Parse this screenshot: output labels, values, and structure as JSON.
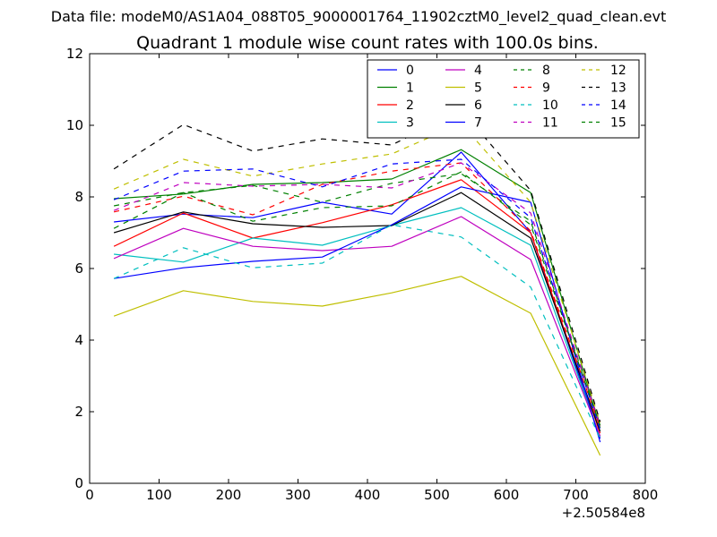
{
  "suptitle": "Data file: modeM0/AS1A04_088T05_9000001764_11902cztM0_level2_quad_clean.evt",
  "chart_data": {
    "type": "line",
    "title": "Quadrant 1 module wise count rates with 100.0s bins.",
    "xlabel": "",
    "ylabel": "",
    "x_offset_text": "+2.50584e8",
    "xlim": [
      0,
      800
    ],
    "ylim": [
      0,
      12
    ],
    "xticks": [
      0,
      100,
      200,
      300,
      400,
      500,
      600,
      700,
      800
    ],
    "yticks": [
      0,
      2,
      4,
      6,
      8,
      10,
      12
    ],
    "grid": false,
    "legend_position": "top-right",
    "legend_columns": 4,
    "x": [
      35,
      135,
      235,
      335,
      435,
      535,
      635,
      735
    ],
    "series": [
      {
        "name": "0",
        "color": "#0000ff",
        "dash": "solid",
        "values": [
          7.3,
          7.52,
          7.42,
          7.85,
          7.52,
          9.25,
          7.0,
          1.25
        ]
      },
      {
        "name": "1",
        "color": "#008000",
        "dash": "solid",
        "values": [
          7.95,
          8.08,
          8.35,
          8.4,
          8.5,
          9.32,
          8.12,
          1.55
        ]
      },
      {
        "name": "2",
        "color": "#ff0000",
        "dash": "solid",
        "values": [
          6.62,
          7.55,
          6.85,
          7.28,
          7.78,
          8.48,
          7.0,
          1.4
        ]
      },
      {
        "name": "3",
        "color": "#00bfbf",
        "dash": "solid",
        "values": [
          6.4,
          6.18,
          6.85,
          6.65,
          7.2,
          7.7,
          6.65,
          1.3
        ]
      },
      {
        "name": "4",
        "color": "#bf00bf",
        "dash": "solid",
        "values": [
          6.28,
          7.12,
          6.62,
          6.5,
          6.62,
          7.45,
          6.25,
          1.32
        ]
      },
      {
        "name": "5",
        "color": "#bfbf00",
        "dash": "solid",
        "values": [
          4.67,
          5.38,
          5.08,
          4.95,
          5.32,
          5.78,
          4.75,
          0.78
        ]
      },
      {
        "name": "6",
        "color": "#000000",
        "dash": "solid",
        "values": [
          7.0,
          7.58,
          7.25,
          7.15,
          7.2,
          8.12,
          6.85,
          1.45
        ]
      },
      {
        "name": "7",
        "color": "#0000ff",
        "dash": "solid",
        "values": [
          5.72,
          6.02,
          6.2,
          6.32,
          7.22,
          8.28,
          7.85,
          1.15
        ]
      },
      {
        "name": "8",
        "color": "#008000",
        "dash": "dashed",
        "values": [
          7.75,
          8.12,
          8.32,
          7.85,
          8.38,
          8.65,
          7.32,
          1.65
        ]
      },
      {
        "name": "9",
        "color": "#ff0000",
        "dash": "dashed",
        "values": [
          7.58,
          8.02,
          7.5,
          8.35,
          8.72,
          8.95,
          7.05,
          1.55
        ]
      },
      {
        "name": "10",
        "color": "#00bfbf",
        "dash": "dashed",
        "values": [
          5.72,
          6.58,
          6.02,
          6.15,
          7.22,
          6.88,
          5.48,
          1.25
        ]
      },
      {
        "name": "11",
        "color": "#bf00bf",
        "dash": "dashed",
        "values": [
          7.62,
          8.4,
          8.3,
          8.35,
          8.25,
          8.95,
          7.55,
          1.6
        ]
      },
      {
        "name": "12",
        "color": "#bfbf00",
        "dash": "dashed",
        "values": [
          8.22,
          9.05,
          8.58,
          8.92,
          9.2,
          10.05,
          7.85,
          1.7
        ]
      },
      {
        "name": "13",
        "color": "#000000",
        "dash": "dashed",
        "values": [
          8.78,
          10.02,
          9.28,
          9.62,
          9.45,
          10.42,
          8.18,
          1.72
        ]
      },
      {
        "name": "14",
        "color": "#0000ff",
        "dash": "dashed",
        "values": [
          7.92,
          8.72,
          8.78,
          8.28,
          8.92,
          9.05,
          7.42,
          1.5
        ]
      },
      {
        "name": "15",
        "color": "#008000",
        "dash": "dashed",
        "values": [
          7.12,
          8.12,
          7.32,
          7.7,
          7.75,
          8.7,
          7.22,
          1.62
        ]
      }
    ]
  }
}
